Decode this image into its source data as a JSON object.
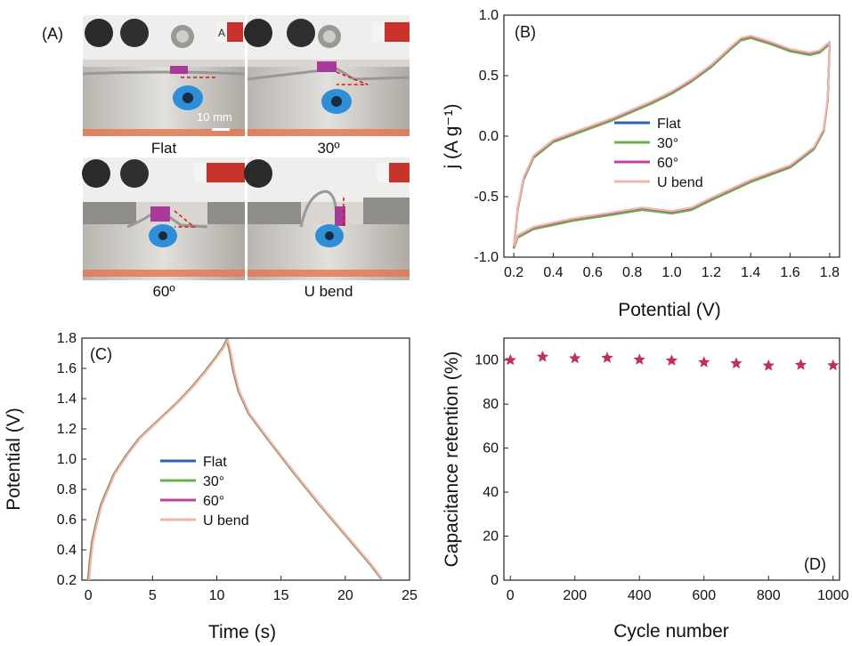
{
  "panel_a": {
    "label": "(A)",
    "captions": [
      "Flat",
      "30º",
      "60º",
      "U bend"
    ],
    "scale_bar": "10 mm",
    "plate_letter": "A"
  },
  "chart_data": [
    {
      "id": "B",
      "label": "(B)",
      "type": "line",
      "xlabel": "Potential (V)",
      "ylabel": "j (A g⁻¹)",
      "xlim": [
        0.15,
        1.85
      ],
      "ylim": [
        -1.0,
        1.0
      ],
      "xticks": [
        "0.2",
        "0.4",
        "0.6",
        "0.8",
        "1.0",
        "1.2",
        "1.4",
        "1.6",
        "1.8"
      ],
      "yticks": [
        "-1.0",
        "-0.5",
        "0.0",
        "0.5",
        "1.0"
      ],
      "series": [
        {
          "name": "Flat",
          "color": "#2f5fb3",
          "yoff": 0.0
        },
        {
          "name": "30°",
          "color": "#6ab04c",
          "yoff": -0.01
        },
        {
          "name": "60°",
          "color": "#c2449a",
          "yoff": 0.005
        },
        {
          "name": "U bend",
          "color": "#f0b6aa",
          "yoff": 0.01
        }
      ],
      "upper_curve": [
        [
          0.2,
          -0.92
        ],
        [
          0.22,
          -0.6
        ],
        [
          0.25,
          -0.35
        ],
        [
          0.3,
          -0.17
        ],
        [
          0.4,
          -0.04
        ],
        [
          0.5,
          0.02
        ],
        [
          0.6,
          0.08
        ],
        [
          0.7,
          0.14
        ],
        [
          0.8,
          0.21
        ],
        [
          0.9,
          0.28
        ],
        [
          1.0,
          0.36
        ],
        [
          1.1,
          0.46
        ],
        [
          1.2,
          0.58
        ],
        [
          1.3,
          0.73
        ],
        [
          1.35,
          0.8
        ],
        [
          1.4,
          0.82
        ],
        [
          1.5,
          0.77
        ],
        [
          1.6,
          0.71
        ],
        [
          1.7,
          0.68
        ],
        [
          1.75,
          0.7
        ],
        [
          1.8,
          0.77
        ]
      ],
      "lower_curve": [
        [
          1.8,
          0.77
        ],
        [
          1.79,
          0.3
        ],
        [
          1.77,
          0.05
        ],
        [
          1.72,
          -0.1
        ],
        [
          1.6,
          -0.25
        ],
        [
          1.4,
          -0.37
        ],
        [
          1.2,
          -0.52
        ],
        [
          1.1,
          -0.6
        ],
        [
          1.0,
          -0.63
        ],
        [
          0.9,
          -0.61
        ],
        [
          0.85,
          -0.6
        ],
        [
          0.7,
          -0.64
        ],
        [
          0.5,
          -0.69
        ],
        [
          0.3,
          -0.76
        ],
        [
          0.22,
          -0.83
        ],
        [
          0.2,
          -0.92
        ]
      ]
    },
    {
      "id": "C",
      "label": "(C)",
      "type": "line",
      "xlabel": "Time (s)",
      "ylabel": "Potential (V)",
      "xlim": [
        -0.5,
        25
      ],
      "ylim": [
        0.2,
        1.8
      ],
      "xticks": [
        "0",
        "5",
        "10",
        "15",
        "20",
        "25"
      ],
      "yticks": [
        "0.2",
        "0.4",
        "0.6",
        "0.8",
        "1.0",
        "1.2",
        "1.4",
        "1.6",
        "1.8"
      ],
      "series": [
        {
          "name": "Flat",
          "color": "#2f5fb3",
          "xoff": 0.0
        },
        {
          "name": "30°",
          "color": "#6ab04c",
          "xoff": -0.03
        },
        {
          "name": "60°",
          "color": "#c2449a",
          "xoff": 0.03
        },
        {
          "name": "U bend",
          "color": "#f0b6aa",
          "xoff": 0.06
        }
      ],
      "curve": [
        [
          0,
          0.2
        ],
        [
          0.1,
          0.3
        ],
        [
          0.3,
          0.45
        ],
        [
          0.6,
          0.57
        ],
        [
          1,
          0.7
        ],
        [
          2,
          0.9
        ],
        [
          3,
          1.03
        ],
        [
          4,
          1.14
        ],
        [
          5,
          1.22
        ],
        [
          6,
          1.3
        ],
        [
          7,
          1.38
        ],
        [
          8,
          1.47
        ],
        [
          9,
          1.57
        ],
        [
          10,
          1.68
        ],
        [
          10.5,
          1.74
        ],
        [
          10.8,
          1.79
        ],
        [
          11,
          1.72
        ],
        [
          11.3,
          1.58
        ],
        [
          11.7,
          1.45
        ],
        [
          12.5,
          1.3
        ],
        [
          14,
          1.13
        ],
        [
          16,
          0.91
        ],
        [
          18,
          0.7
        ],
        [
          20,
          0.5
        ],
        [
          22,
          0.3
        ],
        [
          22.8,
          0.21
        ]
      ]
    },
    {
      "id": "D",
      "label": "(D)",
      "type": "scatter",
      "xlabel": "Cycle number",
      "ylabel": "Capacitance retention (%)",
      "xlim": [
        -20,
        1020
      ],
      "ylim": [
        0,
        110
      ],
      "xticks": [
        "0",
        "200",
        "400",
        "600",
        "800",
        "1000"
      ],
      "yticks": [
        "0",
        "20",
        "40",
        "60",
        "80",
        "100"
      ],
      "marker_color": "#c0305a",
      "x": [
        0,
        100,
        200,
        300,
        400,
        500,
        600,
        700,
        800,
        900,
        1000
      ],
      "y": [
        100,
        101.5,
        100.8,
        101,
        100.2,
        99.8,
        99,
        98.5,
        97.5,
        97.8,
        97.6
      ]
    }
  ]
}
